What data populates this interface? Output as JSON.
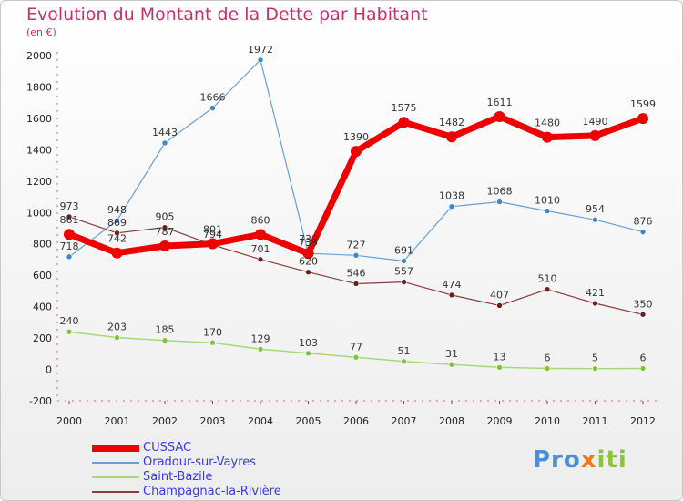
{
  "title": "Evolution du Montant de la Dette par Habitant",
  "unit": "(en €)",
  "logo": {
    "p1": "Pro",
    "p2": "x",
    "p3": "iti"
  },
  "chart_data": {
    "type": "line",
    "x": [
      "2000",
      "2001",
      "2002",
      "2003",
      "2004",
      "2005",
      "2006",
      "2007",
      "2008",
      "2009",
      "2010",
      "2011",
      "2012"
    ],
    "ylim": [
      -200,
      2000
    ],
    "yticks": [
      "-200",
      "0",
      "200",
      "400",
      "600",
      "800",
      "1000",
      "1200",
      "1400",
      "1600",
      "1800",
      "2000"
    ],
    "grid": false,
    "legend_position": "bottom-left",
    "series": [
      {
        "name": "Oradour-sur-Vayres",
        "color": "#6a9fd0",
        "point_color": "#3a86d0",
        "width": 1.2,
        "values": [
          718,
          948,
          1443,
          1666,
          1972,
          739,
          727,
          691,
          1038,
          1068,
          1010,
          954,
          876
        ],
        "labels": [
          "718",
          "948",
          "1443",
          "1666",
          "1972",
          "739",
          "727",
          "691",
          "1038",
          "1068",
          "1010",
          "954",
          "876"
        ]
      },
      {
        "name": "Champagnac-la-Rivière",
        "color": "#8b3a3a",
        "point_color": "#6b1f1f",
        "width": 1.2,
        "values": [
          973,
          869,
          905,
          794,
          701,
          620,
          546,
          557,
          474,
          407,
          510,
          421,
          350
        ],
        "labels": [
          "973",
          "869",
          "905",
          "794",
          "701",
          "620",
          "546",
          "557",
          "474",
          "407",
          "510",
          "421",
          "350"
        ]
      },
      {
        "name": "Saint-Bazile",
        "color": "#a6d87a",
        "point_color": "#7cc43c",
        "width": 1.5,
        "values": [
          240,
          203,
          185,
          170,
          129,
          103,
          77,
          51,
          31,
          13,
          6,
          5,
          6
        ],
        "labels": [
          "240",
          "203",
          "185",
          "170",
          "129",
          "103",
          "77",
          "51",
          "31",
          "13",
          "6",
          "5",
          "6"
        ]
      },
      {
        "name": "CUSSAC",
        "color": "#ee0000",
        "point_color": "#ee0000",
        "width": 7,
        "values": [
          861,
          742,
          787,
          801,
          860,
          739,
          1390,
          1575,
          1482,
          1611,
          1480,
          1490,
          1599
        ],
        "labels": [
          "861",
          "742",
          "787",
          "801",
          "860",
          "739",
          "1390",
          "1575",
          "1482",
          "1611",
          "1480",
          "1490",
          "1599"
        ]
      }
    ]
  },
  "legend": [
    {
      "name": "CUSSAC",
      "color": "#ee0000",
      "width": 7
    },
    {
      "name": "Oradour-sur-Vayres",
      "color": "#6a9fd0",
      "width": 2
    },
    {
      "name": "Saint-Bazile",
      "color": "#a6d87a",
      "width": 2
    },
    {
      "name": "Champagnac-la-Rivière",
      "color": "#8b3a3a",
      "width": 2
    }
  ]
}
